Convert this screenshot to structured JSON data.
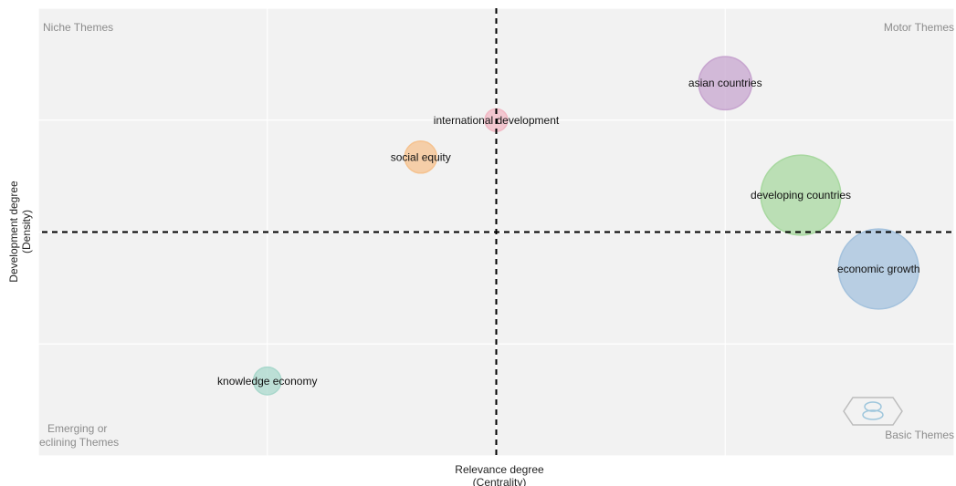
{
  "chart_data": {
    "type": "scatter",
    "xlabel": [
      "Relevance degree",
      "(Centrality)"
    ],
    "ylabel": [
      "Development degree",
      "(Density)"
    ],
    "grid": true,
    "quadrant_labels": {
      "top_left": "Niche Themes",
      "top_right": "Motor Themes",
      "bottom_left": [
        "Emerging or",
        "eclining Themes"
      ],
      "bottom_right": "Basic Themes"
    },
    "xlim": [
      0,
      4
    ],
    "ylim": [
      0,
      4
    ],
    "reference_lines": {
      "x": 2,
      "y": 2
    },
    "points": [
      {
        "label": "asian countries",
        "x": 3.0,
        "y": 3.33,
        "size": 0.22,
        "color": "#c7a5cf"
      },
      {
        "label": "international development",
        "x": 2.0,
        "y": 3.0,
        "size": 0.04,
        "color": "#f2b8c4"
      },
      {
        "label": "social equity",
        "x": 1.67,
        "y": 2.67,
        "size": 0.08,
        "color": "#f5c28f"
      },
      {
        "label": "developing countries",
        "x": 3.33,
        "y": 2.33,
        "size": 0.5,
        "color": "#a8d8a0"
      },
      {
        "label": "economic growth",
        "x": 3.67,
        "y": 1.67,
        "size": 0.5,
        "color": "#a4c2dd"
      },
      {
        "label": "knowledge economy",
        "x": 1.0,
        "y": 0.67,
        "size": 0.06,
        "color": "#a9d8cc"
      }
    ]
  },
  "colors": {
    "panel": "#f2f2f2",
    "grid": "#ffffff",
    "divider": "#000000"
  },
  "icons": {
    "watermark": "hexagon-logo-icon"
  }
}
